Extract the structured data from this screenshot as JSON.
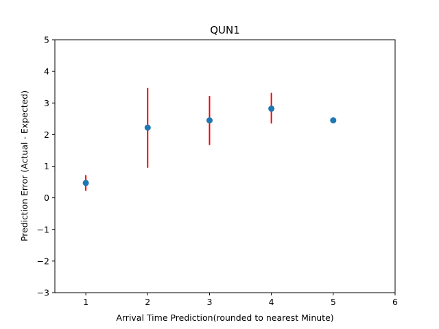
{
  "chart_data": {
    "type": "scatter",
    "title": "QUN1",
    "xlabel": "Arrival Time Prediction(rounded to nearest Minute)",
    "ylabel": "Prediction Error (Actual - Expected)",
    "xlim": [
      0.5,
      6
    ],
    "ylim": [
      -3,
      5
    ],
    "x_ticks": [
      1,
      2,
      3,
      4,
      5,
      6
    ],
    "y_ticks": [
      -3,
      -2,
      -1,
      0,
      1,
      2,
      3,
      4,
      5
    ],
    "x_tick_labels": [
      "1",
      "2",
      "3",
      "4",
      "5",
      "6"
    ],
    "y_tick_labels": [
      "−3",
      "−2",
      "−1",
      "0",
      "1",
      "2",
      "3",
      "4",
      "5"
    ],
    "grid": false,
    "legend": "none",
    "points": [
      {
        "x": 1,
        "y": 0.47,
        "yerr_low": 0.22,
        "yerr_high": 0.72
      },
      {
        "x": 2,
        "y": 2.22,
        "yerr_low": 0.95,
        "yerr_high": 3.48
      },
      {
        "x": 3,
        "y": 2.45,
        "yerr_low": 1.67,
        "yerr_high": 3.22
      },
      {
        "x": 4,
        "y": 2.82,
        "yerr_low": 2.35,
        "yerr_high": 3.32
      },
      {
        "x": 5,
        "y": 2.45,
        "yerr_low": 2.45,
        "yerr_high": 2.45
      }
    ],
    "colors": {
      "marker": "#1f77b4",
      "errorbar": "#ff0000",
      "axes": "#000000"
    }
  }
}
